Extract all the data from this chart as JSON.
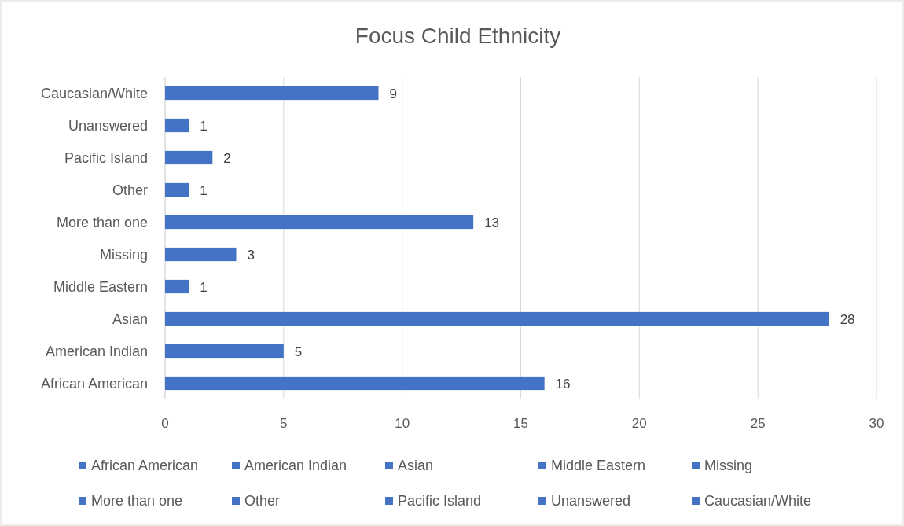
{
  "chart_data": {
    "type": "bar",
    "orientation": "horizontal",
    "stacked": true,
    "title": "Focus Child Ethnicity",
    "categories": [
      "Caucasian/White",
      "Unanswered",
      "Pacific Island",
      "Other",
      "More than one",
      "Missing",
      "Middle Eastern",
      "Asian",
      "American Indian",
      "African American"
    ],
    "series": [
      {
        "name": "African American",
        "color": "#4472c4",
        "values": [
          null,
          null,
          null,
          null,
          null,
          null,
          null,
          null,
          null,
          16
        ]
      },
      {
        "name": "American Indian",
        "color": "#4472c4",
        "values": [
          null,
          null,
          null,
          null,
          null,
          null,
          null,
          null,
          5,
          null
        ]
      },
      {
        "name": "Asian",
        "color": "#4472c4",
        "values": [
          null,
          null,
          null,
          null,
          null,
          null,
          null,
          28,
          null,
          null
        ]
      },
      {
        "name": "Middle Eastern",
        "color": "#4472c4",
        "values": [
          null,
          null,
          null,
          null,
          null,
          null,
          1,
          null,
          null,
          null
        ]
      },
      {
        "name": "Missing",
        "color": "#4472c4",
        "values": [
          null,
          null,
          null,
          null,
          null,
          3,
          null,
          null,
          null,
          null
        ]
      },
      {
        "name": "More than one",
        "color": "#4472c4",
        "values": [
          null,
          null,
          null,
          null,
          13,
          null,
          null,
          null,
          null,
          null
        ]
      },
      {
        "name": "Other",
        "color": "#4472c4",
        "values": [
          null,
          null,
          null,
          1,
          null,
          null,
          null,
          null,
          null,
          null
        ]
      },
      {
        "name": "Pacific Island",
        "color": "#4472c4",
        "values": [
          null,
          null,
          2,
          null,
          null,
          null,
          null,
          null,
          null,
          null
        ]
      },
      {
        "name": "Unanswered",
        "color": "#4472c4",
        "values": [
          null,
          1,
          null,
          null,
          null,
          null,
          null,
          null,
          null,
          null
        ]
      },
      {
        "name": "Caucasian/White",
        "color": "#4472c4",
        "values": [
          9,
          null,
          null,
          null,
          null,
          null,
          null,
          null,
          null,
          null
        ]
      }
    ],
    "xlim": [
      0,
      30
    ],
    "xticks": [
      0,
      5,
      10,
      15,
      20,
      25,
      30
    ],
    "grid": "x",
    "data_labels": true,
    "legend": "bottom"
  }
}
